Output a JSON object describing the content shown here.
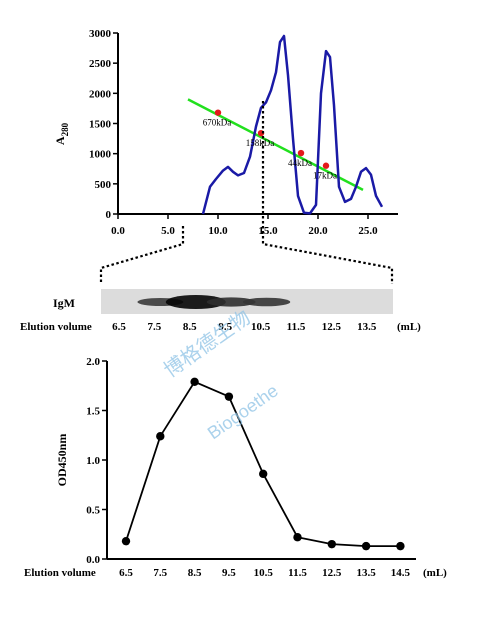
{
  "watermark": {
    "line1": "博格德生物",
    "line2": "Biogoethe"
  },
  "chart_data": [
    {
      "type": "line",
      "ylabel": "A280",
      "ylabel_main": "A",
      "ylabel_sub": "280",
      "xlim": [
        0,
        28
      ],
      "ylim": [
        0,
        3000
      ],
      "x_ticks": [
        "0.0",
        "5.0",
        "10.0",
        "15.0",
        "20.0",
        "25.0"
      ],
      "y_ticks": [
        "0",
        "500",
        "1000",
        "1500",
        "2000",
        "2500",
        "3000"
      ],
      "series": [
        {
          "color": "#1a1aa6",
          "x": [
            8.5,
            9.2,
            9.8,
            10.5,
            11.0,
            11.5,
            12.0,
            12.6,
            13.2,
            13.8,
            14.3,
            14.8,
            15.3,
            15.8,
            16.2,
            16.6,
            17.0,
            17.5,
            18.0,
            18.6,
            19.2,
            19.8,
            20.3,
            20.8,
            21.2,
            21.6,
            22.1,
            22.7,
            23.3,
            23.8,
            24.3,
            24.8,
            25.3,
            25.8,
            26.4
          ],
          "y": [
            0,
            450,
            580,
            720,
            780,
            700,
            640,
            680,
            950,
            1450,
            1760,
            1850,
            2050,
            2350,
            2850,
            2950,
            2300,
            1250,
            300,
            20,
            10,
            150,
            2000,
            2700,
            2600,
            1800,
            450,
            200,
            250,
            450,
            700,
            760,
            650,
            300,
            120
          ]
        },
        {
          "color": "#22e01e",
          "x": [
            7.0,
            24.5
          ],
          "y": [
            1900,
            400
          ]
        }
      ],
      "markers": [
        {
          "label": "670kDa",
          "x": 10.0,
          "y": 1680
        },
        {
          "label": "158kDa",
          "x": 14.3,
          "y": 1340
        },
        {
          "label": "44kDa",
          "x": 18.3,
          "y": 1010
        },
        {
          "label": "17kDa",
          "x": 20.8,
          "y": 800
        }
      ],
      "marker_color": "#e41a1c"
    },
    {
      "type": "other",
      "blot_label": "IgM",
      "volume_title": "Elution volume",
      "volumes": [
        "6.5",
        "7.5",
        "8.5",
        "9.5",
        "10.5",
        "11.5",
        "12.5",
        "13.5"
      ],
      "unit": "(mL)",
      "band_intensity": [
        0,
        0.5,
        1.0,
        0.6,
        0.55,
        0,
        0,
        0
      ]
    },
    {
      "type": "line",
      "ylabel": "OD450nm",
      "xlabel": "Elution volume",
      "unit": "(mL)",
      "categories": [
        "6.5",
        "7.5",
        "8.5",
        "9.5",
        "10.5",
        "11.5",
        "12.5",
        "13.5",
        "14.5"
      ],
      "values": [
        0.18,
        1.24,
        1.79,
        1.64,
        0.86,
        0.22,
        0.15,
        0.13,
        0.13
      ],
      "ylim": [
        0,
        2.0
      ],
      "y_ticks": [
        "0.0",
        "0.5",
        "1.0",
        "1.5",
        "2.0"
      ],
      "color": "#000000"
    }
  ]
}
